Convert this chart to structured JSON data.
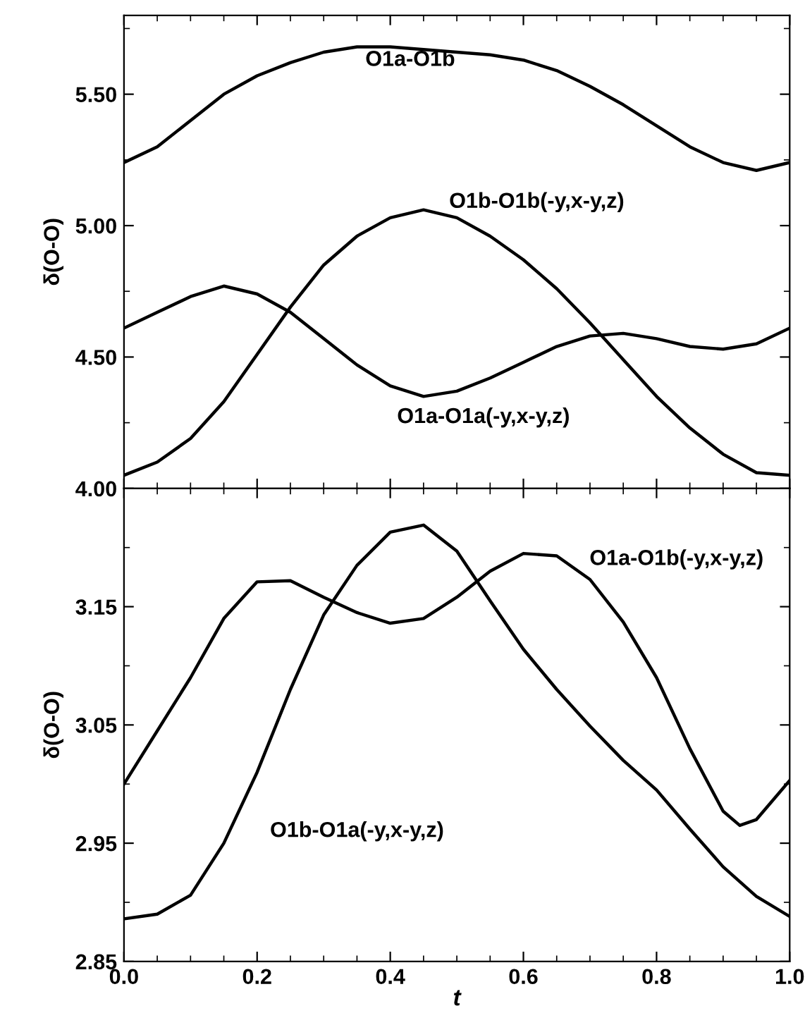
{
  "chart_data": [
    {
      "type": "line",
      "ylabel": "δ(O-O)",
      "xlim": [
        0,
        1
      ],
      "xticks": [
        0,
        0.2,
        0.4,
        0.6,
        0.8,
        1
      ],
      "ylim": [
        4.0,
        5.8
      ],
      "yticks": [
        {
          "value": 4.0,
          "label": "4.00"
        },
        {
          "value": 4.5,
          "label": "4.50"
        },
        {
          "value": 5.0,
          "label": "5.00"
        },
        {
          "value": 5.5,
          "label": "5.50"
        }
      ],
      "tick_labels": "y",
      "marker": "none",
      "line_style": "solid",
      "series": [
        {
          "name": "O1a-O1b",
          "color": "#000000",
          "x": [
            0,
            0.05,
            0.1,
            0.15,
            0.2,
            0.25,
            0.3,
            0.35,
            0.4,
            0.45,
            0.5,
            0.55,
            0.6,
            0.65,
            0.7,
            0.75,
            0.8,
            0.85,
            0.9,
            0.95,
            1
          ],
          "values": [
            5.24,
            5.3,
            5.4,
            5.5,
            5.57,
            5.62,
            5.66,
            5.68,
            5.68,
            5.67,
            5.66,
            5.65,
            5.63,
            5.59,
            5.53,
            5.46,
            5.38,
            5.3,
            5.24,
            5.21,
            5.24
          ]
        },
        {
          "name": "O1b-O1b(-y,x-y,z)",
          "color": "#000000",
          "x": [
            0,
            0.05,
            0.1,
            0.15,
            0.2,
            0.25,
            0.3,
            0.35,
            0.4,
            0.45,
            0.5,
            0.55,
            0.6,
            0.65,
            0.7,
            0.75,
            0.8,
            0.85,
            0.9,
            0.95,
            1
          ],
          "values": [
            4.05,
            4.1,
            4.19,
            4.33,
            4.51,
            4.69,
            4.85,
            4.96,
            5.03,
            5.06,
            5.03,
            4.96,
            4.87,
            4.76,
            4.63,
            4.49,
            4.35,
            4.23,
            4.13,
            4.06,
            4.05
          ]
        },
        {
          "name": "O1a-O1a(-y,x-y,z)",
          "color": "#000000",
          "x": [
            0,
            0.05,
            0.1,
            0.15,
            0.2,
            0.25,
            0.3,
            0.35,
            0.4,
            0.45,
            0.5,
            0.55,
            0.6,
            0.65,
            0.7,
            0.75,
            0.8,
            0.85,
            0.9,
            0.95,
            1
          ],
          "values": [
            4.61,
            4.67,
            4.73,
            4.77,
            4.74,
            4.67,
            4.57,
            4.47,
            4.39,
            4.35,
            4.37,
            4.42,
            4.48,
            4.54,
            4.58,
            4.59,
            4.57,
            4.54,
            4.53,
            4.55,
            4.61
          ]
        }
      ]
    },
    {
      "type": "line",
      "ylabel": "δ(O-O)",
      "xlabel": "t",
      "xlim": [
        0,
        1
      ],
      "xticks": [
        {
          "value": 0,
          "label": "0.0"
        },
        0.2,
        0.4,
        0.6,
        0.8,
        {
          "value": 1,
          "label": "1.0"
        }
      ],
      "ylim": [
        2.85,
        3.25
      ],
      "yticks": [
        2.85,
        2.95,
        3.05,
        3.15
      ],
      "marker": "none",
      "line_style": "solid",
      "series": [
        {
          "name": "O1a-O1b(-y,x-y,z)",
          "color": "#000000",
          "x": [
            0,
            0.05,
            0.1,
            0.15,
            0.2,
            0.25,
            0.3,
            0.35,
            0.4,
            0.45,
            0.5,
            0.55,
            0.6,
            0.65,
            0.7,
            0.75,
            0.8,
            0.85,
            0.9,
            0.925,
            0.95,
            1
          ],
          "values": [
            3.0,
            3.045,
            3.09,
            3.14,
            3.171,
            3.172,
            3.158,
            3.145,
            3.136,
            3.14,
            3.158,
            3.18,
            3.195,
            3.193,
            3.173,
            3.137,
            3.09,
            3.03,
            2.977,
            2.965,
            2.97,
            3.003
          ]
        },
        {
          "name": "O1b-O1a(-y,x-y,z)",
          "color": "#000000",
          "x": [
            0,
            0.05,
            0.1,
            0.15,
            0.2,
            0.25,
            0.3,
            0.35,
            0.4,
            0.45,
            0.5,
            0.55,
            0.6,
            0.65,
            0.7,
            0.75,
            0.8,
            0.85,
            0.9,
            0.95,
            1
          ],
          "values": [
            2.886,
            2.89,
            2.906,
            2.95,
            3.01,
            3.08,
            3.143,
            3.185,
            3.213,
            3.219,
            3.197,
            3.155,
            3.114,
            3.08,
            3.049,
            3.02,
            2.995,
            2.962,
            2.93,
            2.905,
            2.888
          ]
        }
      ]
    }
  ]
}
